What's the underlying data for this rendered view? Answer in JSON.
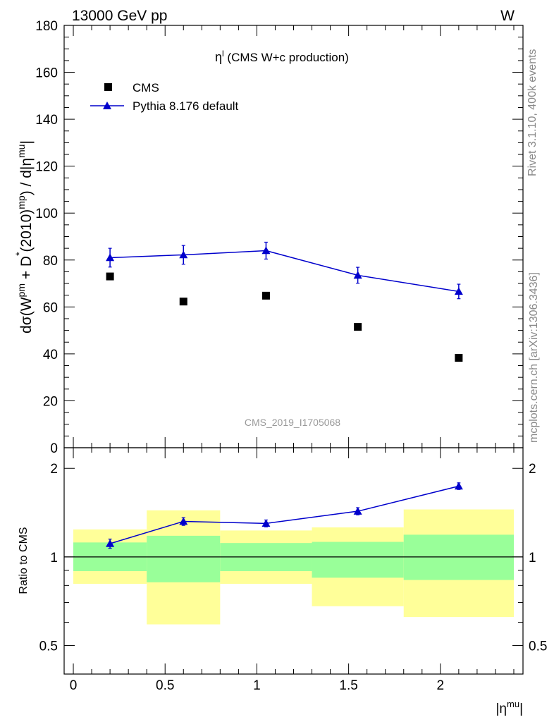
{
  "header": {
    "energy": "13000 GeV pp",
    "process": "W"
  },
  "side_text": {
    "rivet": "Rivet 3.1.10,  400k events",
    "mcplots": "mcplots.cern.ch [arXiv:1306.3436]"
  },
  "chart_data": {
    "type": "scatter",
    "title": "η (CMS W+c production)",
    "title_main": "η",
    "title_sup": "l",
    "title_rest": " (CMS W+c production)",
    "analysis_id": "CMS_2019_I1705068",
    "ylabel": "dσ(W^pm + D^*(2010)^mp) / d|η^mu|",
    "ylabel_parts": {
      "a": "dσ(W",
      "a_sup": "pm",
      "b": " + D",
      "b_sup": "*",
      "c": "(2010)",
      "c_sup": "mp",
      "d": ") / d|η",
      "d_sup": "mu",
      "e": "|"
    },
    "xlabel": "|η^mu|",
    "xlabel_parts": {
      "a": "|η",
      "a_sup": "mu",
      "b": "|"
    },
    "ratio_ylabel": "Ratio to CMS",
    "xlim": [
      -0.05,
      2.45
    ],
    "ylim": [
      0,
      180
    ],
    "ratio_ylim": [
      0.4,
      2.35
    ],
    "ratio_scale": "log",
    "x_ticks": [
      0,
      0.5,
      1,
      1.5,
      2
    ],
    "x_tick_labels": [
      "0",
      "0.5",
      "1",
      "1.5",
      "2"
    ],
    "y_ticks": [
      0,
      20,
      40,
      60,
      80,
      100,
      120,
      140,
      160,
      180
    ],
    "y_tick_labels": [
      "0",
      "20",
      "40",
      "60",
      "80",
      "100",
      "120",
      "140",
      "160",
      "180"
    ],
    "ratio_ticks": [
      0.5,
      1,
      2
    ],
    "ratio_tick_labels": [
      "0.5",
      "1",
      "2"
    ],
    "legend": {
      "position": "top-left",
      "entries": [
        "CMS",
        "Pythia 8.176 default"
      ]
    },
    "bins": [
      {
        "lo": 0.0,
        "hi": 0.4
      },
      {
        "lo": 0.4,
        "hi": 0.8
      },
      {
        "lo": 0.8,
        "hi": 1.3
      },
      {
        "lo": 1.3,
        "hi": 1.8
      },
      {
        "lo": 1.8,
        "hi": 2.4
      }
    ],
    "series": [
      {
        "name": "CMS",
        "marker": "square",
        "color": "#000000",
        "x": [
          0.2,
          0.6,
          1.05,
          1.55,
          2.1
        ],
        "y": [
          73.0,
          62.3,
          64.8,
          51.5,
          38.3
        ]
      },
      {
        "name": "Pythia 8.176 default",
        "marker": "triangle",
        "color": "#0000cc",
        "x": [
          0.2,
          0.6,
          1.05,
          1.55,
          2.1
        ],
        "y": [
          81.0,
          82.2,
          84.0,
          73.5,
          66.6
        ],
        "yerr": [
          4.0,
          4.0,
          3.6,
          3.4,
          3.1
        ],
        "ratio": [
          1.11,
          1.32,
          1.3,
          1.43,
          1.74
        ],
        "ratio_err": [
          0.04,
          0.04,
          0.035,
          0.04,
          0.045
        ]
      }
    ],
    "uncertainty_bands": {
      "colors": {
        "inner": "#99ff99",
        "outer": "#ffff99"
      },
      "inner": [
        {
          "lo": 0.895,
          "hi": 1.12
        },
        {
          "lo": 0.82,
          "hi": 1.18
        },
        {
          "lo": 0.895,
          "hi": 1.115
        },
        {
          "lo": 0.85,
          "hi": 1.125
        },
        {
          "lo": 0.835,
          "hi": 1.19
        }
      ],
      "outer": [
        {
          "lo": 0.81,
          "hi": 1.24
        },
        {
          "lo": 0.59,
          "hi": 1.44
        },
        {
          "lo": 0.81,
          "hi": 1.23
        },
        {
          "lo": 0.68,
          "hi": 1.26
        },
        {
          "lo": 0.625,
          "hi": 1.45
        }
      ]
    }
  }
}
